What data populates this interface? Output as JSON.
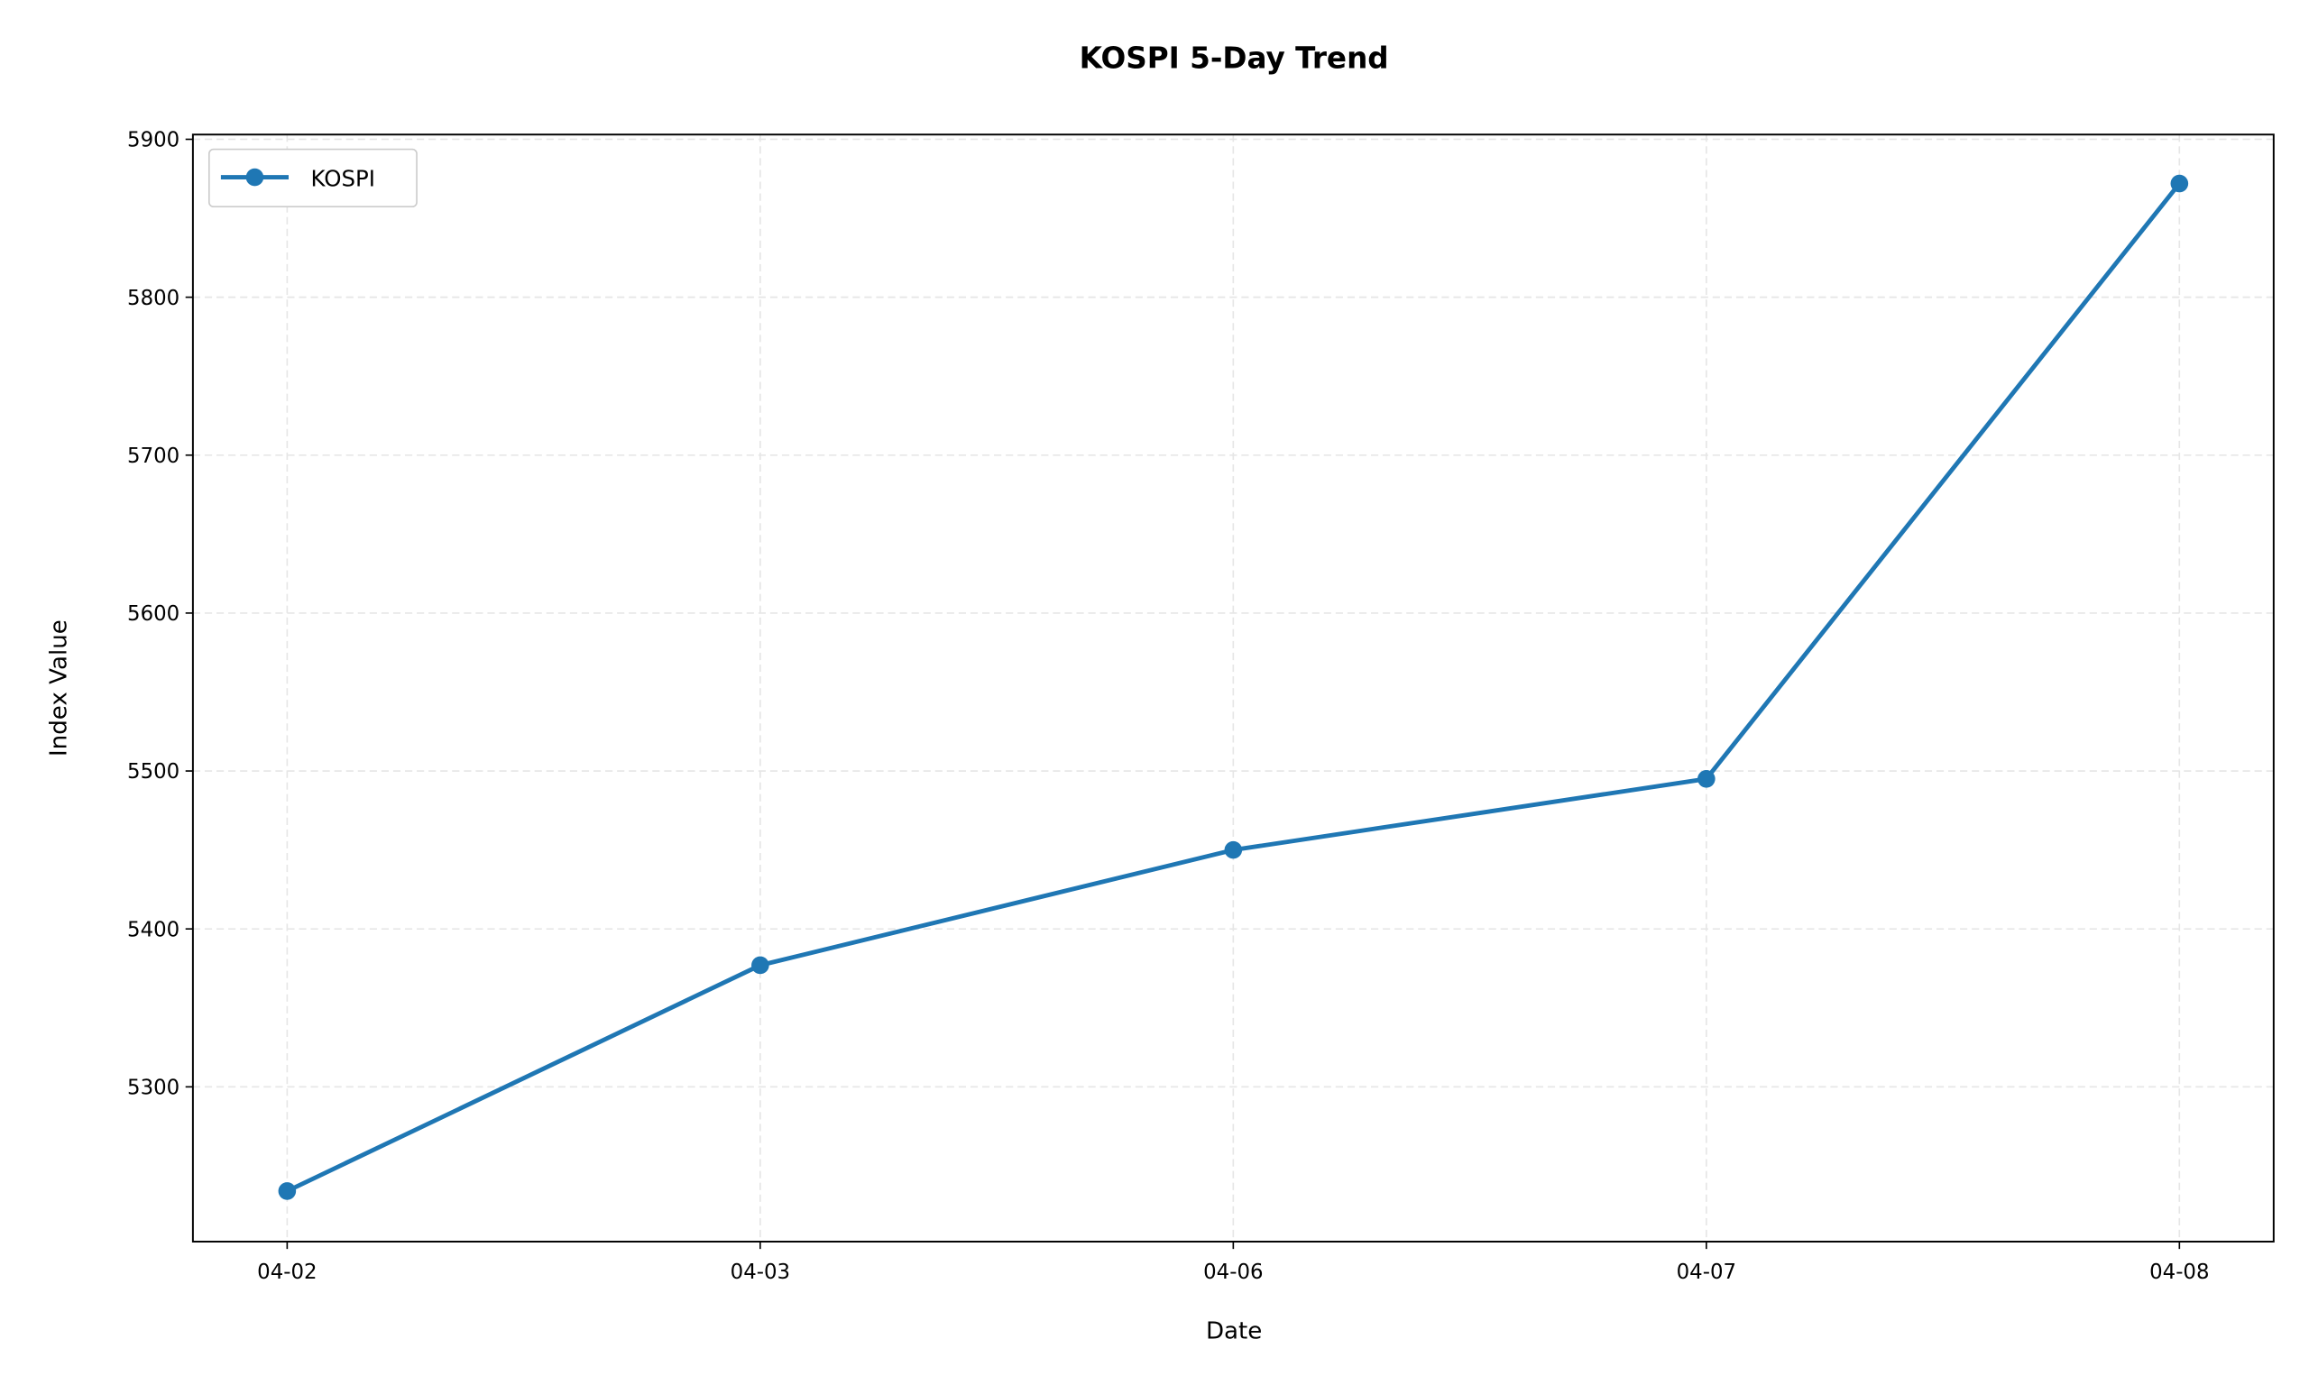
{
  "chart_data": {
    "type": "line",
    "title": "KOSPI 5-Day Trend",
    "xlabel": "Date",
    "ylabel": "Index Value",
    "categories": [
      "04-02",
      "04-03",
      "04-06",
      "04-07",
      "04-08"
    ],
    "series": [
      {
        "name": "KOSPI",
        "values": [
          5234,
          5377,
          5450,
          5495,
          5872
        ],
        "color": "#1f77b4",
        "marker": "circle"
      }
    ],
    "ylim": [
      5202,
      5903
    ],
    "yticks": [
      5300,
      5400,
      5500,
      5600,
      5700,
      5800,
      5900
    ],
    "grid": true,
    "legend": "top-left"
  }
}
